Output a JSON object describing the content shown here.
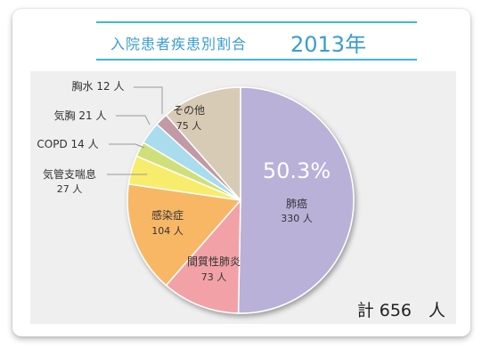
{
  "header": {
    "title": "入院患者疾患別割合",
    "year": "2013年"
  },
  "total": "計 656　人",
  "chart_data": {
    "type": "pie",
    "title": "入院患者疾患別割合 2013年",
    "unit": "人",
    "total": 656,
    "slices": [
      {
        "label": "肺癌",
        "value": 330,
        "value_text": "330 人",
        "percent_text": "50.3%",
        "color": "#b9b1d8"
      },
      {
        "label": "間質性肺炎",
        "value": 73,
        "value_text": "73 人",
        "color": "#f2a2a6"
      },
      {
        "label": "感染症",
        "value": 104,
        "value_text": "104 人",
        "color": "#f7b765"
      },
      {
        "label": "気管支喘息",
        "value": 27,
        "value_text": "27 人",
        "color": "#f8ec6d"
      },
      {
        "label": "COPD",
        "value": 14,
        "value_text": "14 人",
        "color": "#cfe07a"
      },
      {
        "label": "気胸",
        "value": 21,
        "value_text": "21 人",
        "color": "#a9dced"
      },
      {
        "label": "胸水",
        "value": 12,
        "value_text": "12 人",
        "color": "#c29aa6"
      },
      {
        "label": "その他",
        "value": 75,
        "value_text": "75 人",
        "color": "#d8cbb5"
      }
    ]
  }
}
